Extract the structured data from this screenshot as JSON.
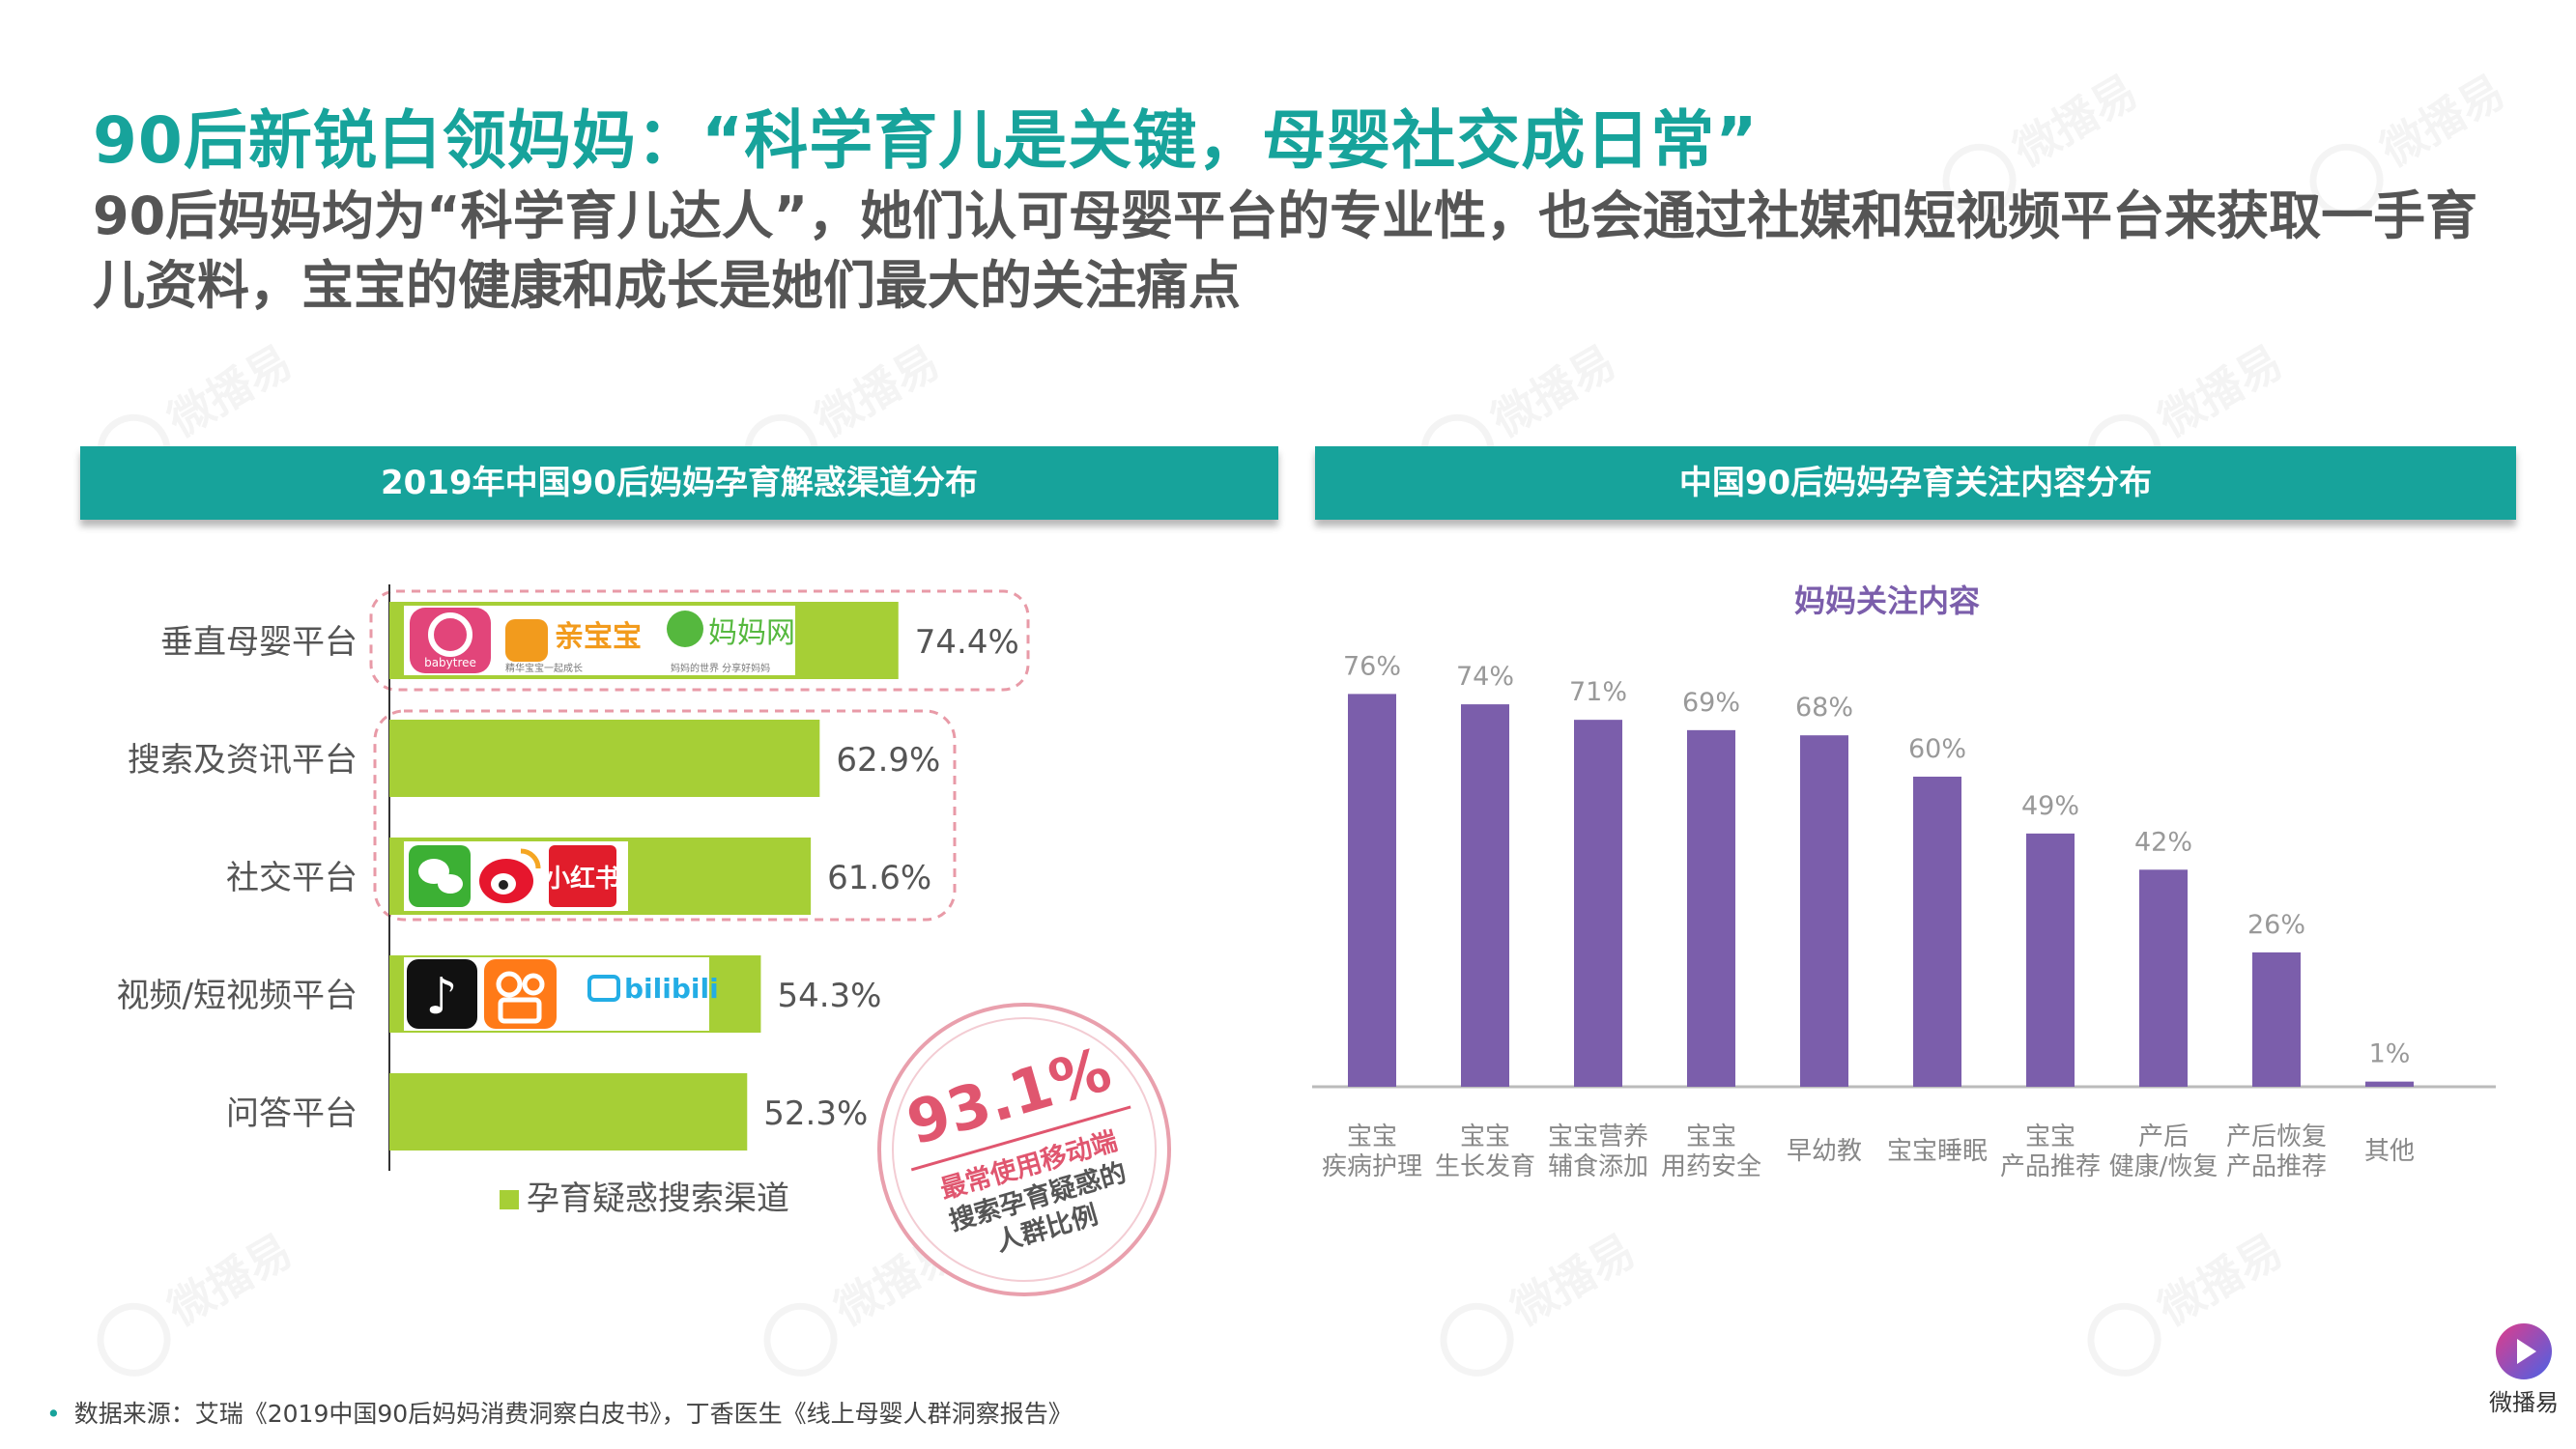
{
  "title": "90后新锐白领妈妈：“科学育儿是关键，母婴社交成日常”",
  "subtitle": "90后妈妈均为“科学育儿达人”，她们认可母婴平台的专业性，也会通过社媒和短视频平台来获取一手育儿资料，宝宝的健康和成长是她们最大的关注痛点",
  "left_panel": {
    "header": "2019年中国90后妈妈孕育解惑渠道分布"
  },
  "right_panel": {
    "header": "中国90后妈妈孕育关注内容分布"
  },
  "stamp": {
    "value": "93.1%",
    "text_lines": [
      "最常使用移动端",
      "搜索孕育疑惑的",
      "人群比例"
    ]
  },
  "logos": {
    "vertical": [
      "babytree",
      "亲宝宝",
      "妈妈网"
    ],
    "vertical_tagline": [
      "精华宝宝一起成长",
      "妈妈的世界 分享好妈妈"
    ],
    "social": [
      "微信",
      "微博",
      "小红书"
    ],
    "video": [
      "抖音",
      "快手",
      "bilibili"
    ]
  },
  "source": "数据来源：艾瑞《2019中国90后妈妈消费洞察白皮书》，丁香医生《线上母婴人群洞察报告》",
  "watermark": "微播易",
  "brand": "微播易",
  "colors": {
    "teal": "#17a39b",
    "green_bar": "#a6cf36",
    "purple_bar": "#7b5eab",
    "dash_pink": "#e89aa7"
  },
  "chart_data": [
    {
      "type": "bar",
      "orientation": "horizontal",
      "categories": [
        "垂直母婴平台",
        "搜索及资讯平台",
        "社交平台",
        "视频/短视频平台",
        "问答平台"
      ],
      "values": [
        74.4,
        62.9,
        61.6,
        54.3,
        52.3
      ],
      "value_labels": [
        "74.4%",
        "62.9%",
        "61.6%",
        "54.3%",
        "52.3%"
      ],
      "series": [
        {
          "name": "孕育疑惑搜索渠道",
          "values": [
            74.4,
            62.9,
            61.6,
            54.3,
            52.3
          ]
        }
      ],
      "legend": "bottom",
      "grid": false
    },
    {
      "type": "bar",
      "title": "妈妈关注内容",
      "categories": [
        [
          "宝宝",
          "疾病护理"
        ],
        [
          "宝宝",
          "生长发育"
        ],
        [
          "宝宝营养",
          "辅食添加"
        ],
        [
          "宝宝",
          "用药安全"
        ],
        [
          "早幼教"
        ],
        [
          "宝宝睡眠"
        ],
        [
          "宝宝",
          "产品推荐"
        ],
        [
          "产后",
          "健康/恢复"
        ],
        [
          "产后恢复",
          "产品推荐"
        ],
        [
          "其他"
        ]
      ],
      "values": [
        76,
        74,
        71,
        69,
        68,
        60,
        49,
        42,
        26,
        1
      ],
      "value_labels": [
        "76%",
        "74%",
        "71%",
        "69%",
        "68%",
        "60%",
        "49%",
        "42%",
        "26%",
        "1%"
      ],
      "grid": false
    }
  ]
}
